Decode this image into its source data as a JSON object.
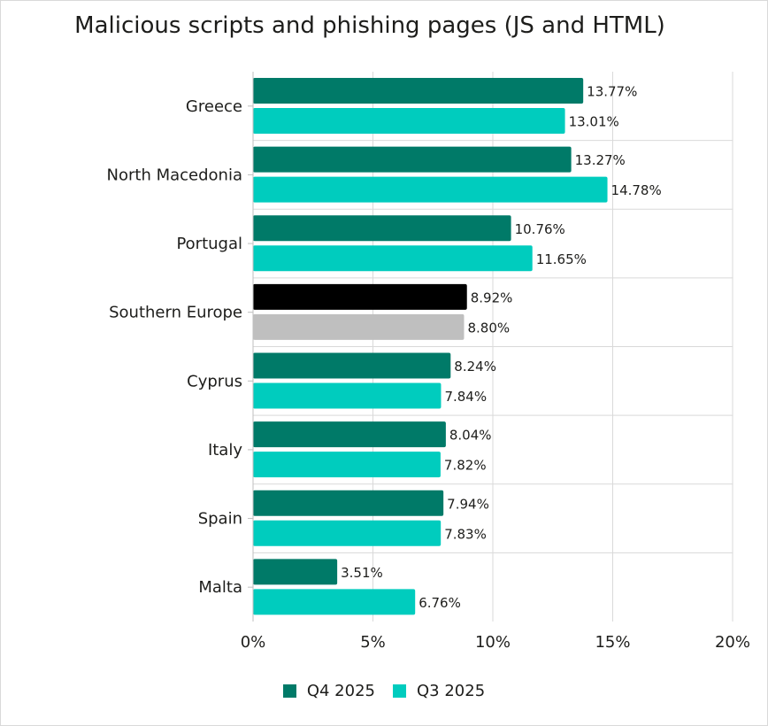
{
  "chart_data": {
    "type": "bar",
    "orientation": "horizontal",
    "title": "Malicious scripts and phishing pages (JS and HTML)",
    "categories": [
      "Greece",
      "North Macedonia",
      "Portugal",
      "Southern Europe",
      "Cyprus",
      "Italy",
      "Spain",
      "Malta"
    ],
    "series": [
      {
        "name": "Q4 2025",
        "color": "#007a68",
        "values": [
          13.77,
          13.27,
          10.76,
          8.92,
          8.24,
          8.04,
          7.94,
          3.51
        ],
        "labels": [
          "13.77%",
          "13.27%",
          "10.76%",
          "8.92%",
          "8.24%",
          "8.04%",
          "7.94%",
          "3.51%"
        ]
      },
      {
        "name": "Q3 2025",
        "color": "#00ccbe",
        "values": [
          13.01,
          14.78,
          11.65,
          8.8,
          7.84,
          7.82,
          7.83,
          6.76
        ],
        "labels": [
          "13.01%",
          "14.78%",
          "11.65%",
          "8.80%",
          "7.84%",
          "7.82%",
          "7.83%",
          "6.76%"
        ]
      }
    ],
    "highlight": {
      "category": "Southern Europe",
      "colors": [
        "#000000",
        "#bfbfbf"
      ]
    },
    "xlim": [
      0,
      20
    ],
    "xticks": [
      0,
      5,
      10,
      15,
      20
    ],
    "xtick_labels": [
      "0%",
      "5%",
      "10%",
      "15%",
      "20%"
    ],
    "xlabel": "",
    "ylabel": "",
    "grid": true,
    "legend_position": "bottom-center"
  }
}
